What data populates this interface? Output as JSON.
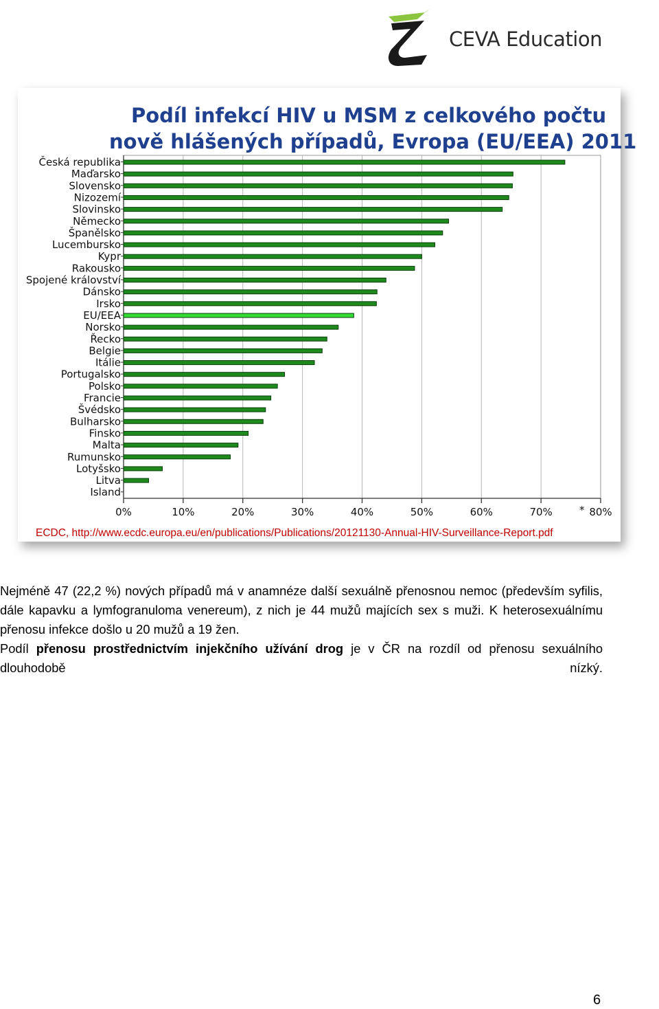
{
  "header": {
    "logo_text": "CEVA Education"
  },
  "chart_data": {
    "type": "bar",
    "orientation": "horizontal",
    "title_line1": "Podíl infekcí HIV u MSM z celkového počtu",
    "title_line2": "nově hlášených případů, Evropa (EU/EEA) 2011",
    "categories": [
      "Česká republika",
      "Maďarsko",
      "Slovensko",
      "Nizozemí",
      "Slovinsko",
      "Německo",
      "Španělsko",
      "Lucembursko",
      "Kypr",
      "Rakousko",
      "Spojené království",
      "Dánsko",
      "Irsko",
      "EU/EEA",
      "Norsko",
      "Řecko",
      "Belgie",
      "Itálie",
      "Portugalsko",
      "Polsko",
      "Francie",
      "Švédsko",
      "Bulharsko",
      "Finsko",
      "Malta",
      "Rumunsko",
      "Lotyšsko",
      "Litva",
      "Island"
    ],
    "values": [
      74,
      65.3,
      65.2,
      64.6,
      63.5,
      54.5,
      53.5,
      52.2,
      50,
      48.8,
      44,
      42.5,
      42.4,
      38.6,
      36,
      34.1,
      33.3,
      32,
      27,
      25.8,
      24.7,
      23.8,
      23.4,
      20.9,
      19.2,
      17.9,
      6.5,
      4.2,
      0
    ],
    "highlight": "EU/EEA",
    "xlim": [
      0,
      80
    ],
    "xticks": [
      "0%",
      "10%",
      "20%",
      "30%",
      "40%",
      "50%",
      "60%",
      "70%",
      "80%"
    ],
    "footnote_mark": "*",
    "grid": true,
    "colors": {
      "bar": "#1e8a1e",
      "bar_highlight": "#33dd33",
      "bar_outline": "#0a3d0a",
      "title": "#1f3f8f",
      "source": "#c00000"
    },
    "source": "ECDC, http://www.ecdc.europa.eu/en/publications/Publications/20121130-Annual-HIV-Surveillance-Report.pdf"
  },
  "body": {
    "p1": "Nejméně 47 (22,2 %) nových případů má v anamnéze další sexuálně přenosnou nemoc (především syfilis, dále kapavku a lymfogranuloma venereum), z nich je 44 mužů majících sex s muži. K heterosexuálnímu přenosu infekce došlo u 20 mužů a 19 žen.",
    "p2_a": "Podíl ",
    "p2_b": "přenosu prostřednictvím injekčního užívání drog",
    "p2_c": " je v ČR na rozdíl od přenosu sexuálního dlouhodobě nízký."
  },
  "footer": {
    "page_number": "6"
  }
}
